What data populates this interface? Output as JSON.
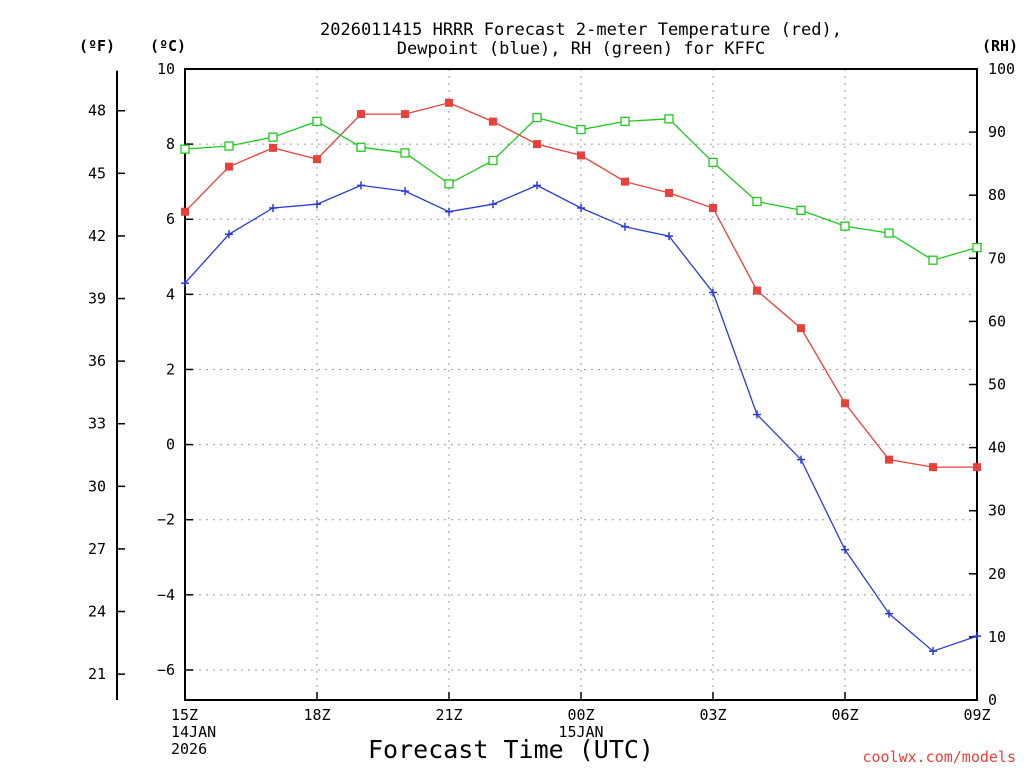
{
  "chart_data": {
    "type": "line",
    "title_lines": [
      "2026011415 HRRR Forecast 2-meter Temperature (red),",
      "Dewpoint (blue), RH (green) for KFFC"
    ],
    "unit_labels": {
      "fahrenheit": "(ºF)",
      "celsius": "(ºC)",
      "rh": "(RH)"
    },
    "xlabel": "Forecast Time (UTC)",
    "credit": "coolwx.com/models",
    "hours": [
      0,
      1,
      2,
      3,
      4,
      5,
      6,
      7,
      8,
      9,
      10,
      11,
      12,
      13,
      14,
      15,
      16,
      17,
      18
    ],
    "xlim": [
      0,
      18
    ],
    "x_ticks": [
      {
        "hour": 0,
        "lines": [
          "15Z",
          "14JAN",
          "2026"
        ]
      },
      {
        "hour": 3,
        "lines": [
          "18Z"
        ]
      },
      {
        "hour": 6,
        "lines": [
          "21Z"
        ]
      },
      {
        "hour": 9,
        "lines": [
          "00Z",
          "15JAN"
        ]
      },
      {
        "hour": 12,
        "lines": [
          "03Z"
        ]
      },
      {
        "hour": 15,
        "lines": [
          "06Z"
        ]
      },
      {
        "hour": 18,
        "lines": [
          "09Z"
        ]
      }
    ],
    "celsius_axis": {
      "range": [
        -6.8,
        10
      ],
      "ticks": [
        "10",
        "8",
        "6",
        "4",
        "2",
        "0",
        "−2",
        "−4",
        "−6"
      ],
      "tick_values": [
        10,
        8,
        6,
        4,
        2,
        0,
        -2,
        -4,
        -6
      ]
    },
    "fahrenheit_axis": {
      "ticks": [
        "48",
        "45",
        "42",
        "39",
        "36",
        "33",
        "30",
        "27",
        "24",
        "21"
      ],
      "tick_values": [
        48,
        45,
        42,
        39,
        36,
        33,
        30,
        27,
        24,
        21
      ]
    },
    "rh_axis": {
      "range": [
        0,
        100
      ],
      "ticks": [
        "100",
        "90",
        "80",
        "70",
        "60",
        "50",
        "40",
        "30",
        "20",
        "10",
        "0"
      ],
      "tick_values": [
        100,
        90,
        80,
        70,
        60,
        50,
        40,
        30,
        20,
        10,
        0
      ]
    },
    "series": [
      {
        "name": "Temperature",
        "axis": "celsius",
        "color": "#e8403a",
        "marker": "filled-square",
        "values": [
          6.2,
          7.4,
          7.9,
          7.6,
          8.8,
          8.8,
          9.1,
          8.6,
          8.0,
          7.7,
          7.0,
          6.7,
          6.3,
          4.1,
          3.1,
          1.1,
          -0.4,
          -0.6,
          -0.6
        ]
      },
      {
        "name": "Dewpoint",
        "axis": "celsius",
        "color": "#2b3bd8",
        "marker": "plus",
        "values": [
          4.3,
          5.6,
          6.3,
          6.4,
          6.9,
          6.75,
          6.2,
          6.4,
          6.9,
          6.3,
          5.8,
          5.55,
          4.05,
          0.8,
          -0.4,
          -2.8,
          -4.5,
          -5.5,
          -5.1
        ]
      },
      {
        "name": "RH",
        "axis": "rh",
        "color": "#1ec81e",
        "marker": "open-square",
        "values": [
          87.3,
          87.8,
          89.2,
          91.7,
          87.6,
          86.7,
          81.8,
          85.5,
          92.3,
          90.4,
          91.7,
          92.1,
          85.2,
          79.0,
          77.6,
          75.1,
          74.0,
          69.7,
          71.7
        ]
      }
    ]
  }
}
